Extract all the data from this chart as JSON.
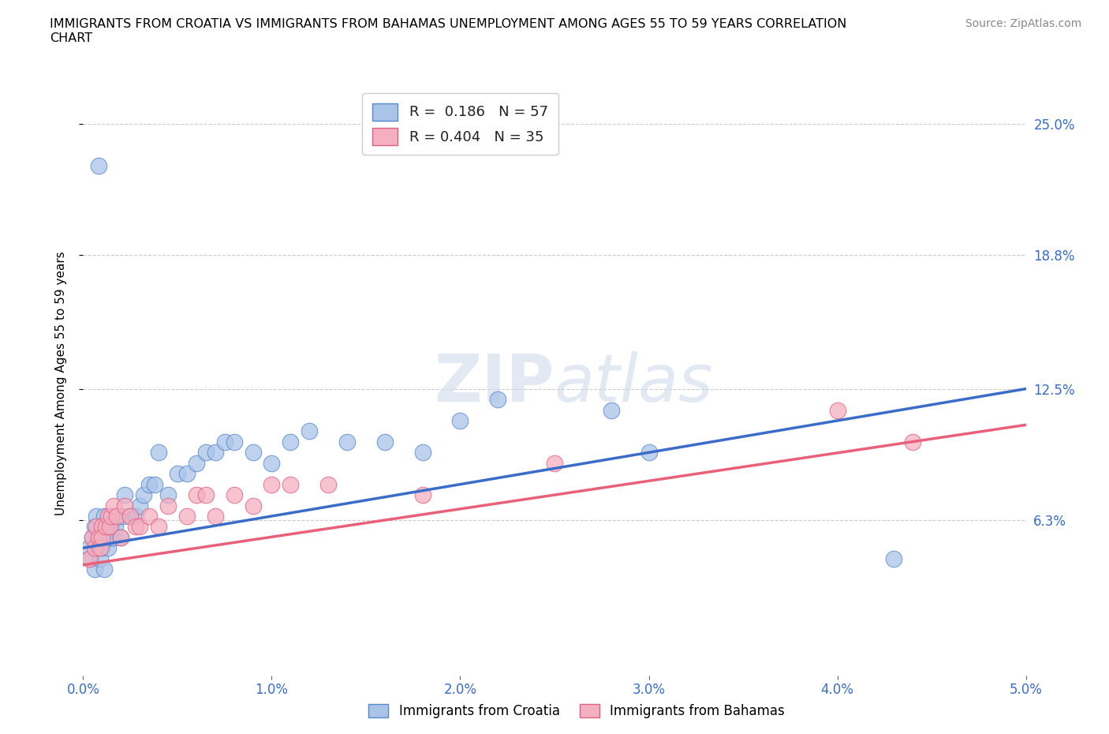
{
  "title": "IMMIGRANTS FROM CROATIA VS IMMIGRANTS FROM BAHAMAS UNEMPLOYMENT AMONG AGES 55 TO 59 YEARS CORRELATION\nCHART",
  "source": "Source: ZipAtlas.com",
  "ylabel": "Unemployment Among Ages 55 to 59 years",
  "xlim": [
    0.0,
    0.05
  ],
  "ylim": [
    -0.01,
    0.265
  ],
  "xticks": [
    0.0,
    0.01,
    0.02,
    0.03,
    0.04,
    0.05
  ],
  "xticklabels": [
    "0.0%",
    "1.0%",
    "2.0%",
    "3.0%",
    "4.0%",
    "5.0%"
  ],
  "yticks": [
    0.063,
    0.125,
    0.188,
    0.25
  ],
  "yticklabels": [
    "6.3%",
    "12.5%",
    "18.8%",
    "25.0%"
  ],
  "croatia_color": "#aac4e8",
  "bahamas_color": "#f4afc0",
  "croatia_edge_color": "#5588cc",
  "bahamas_edge_color": "#e06080",
  "croatia_line_color": "#3a6cc8",
  "bahamas_line_color": "#e8607a",
  "watermark_color": "#ccd8ea",
  "legend1_label": "R =  0.186   N = 57",
  "legend2_label": "R = 0.404   N = 35",
  "croatia_label": "Immigrants from Croatia",
  "bahamas_label": "Immigrants from Bahamas",
  "croatia_x": [
    0.0003,
    0.0004,
    0.0005,
    0.0006,
    0.0006,
    0.0007,
    0.0008,
    0.0008,
    0.0009,
    0.001,
    0.001,
    0.001,
    0.0011,
    0.0011,
    0.0012,
    0.0012,
    0.0013,
    0.0013,
    0.0014,
    0.0014,
    0.0015,
    0.0015,
    0.0016,
    0.0017,
    0.0018,
    0.0019,
    0.002,
    0.0021,
    0.0022,
    0.0025,
    0.0028,
    0.003,
    0.0032,
    0.0035,
    0.0038,
    0.004,
    0.0045,
    0.005,
    0.0055,
    0.006,
    0.0065,
    0.007,
    0.0075,
    0.008,
    0.009,
    0.01,
    0.011,
    0.012,
    0.014,
    0.016,
    0.018,
    0.02,
    0.022,
    0.028,
    0.03,
    0.043,
    0.0008
  ],
  "croatia_y": [
    0.05,
    0.045,
    0.055,
    0.06,
    0.04,
    0.065,
    0.05,
    0.055,
    0.045,
    0.06,
    0.05,
    0.055,
    0.065,
    0.04,
    0.055,
    0.06,
    0.06,
    0.05,
    0.06,
    0.055,
    0.06,
    0.055,
    0.055,
    0.06,
    0.065,
    0.065,
    0.055,
    0.065,
    0.075,
    0.065,
    0.065,
    0.07,
    0.075,
    0.08,
    0.08,
    0.095,
    0.075,
    0.085,
    0.085,
    0.09,
    0.095,
    0.095,
    0.1,
    0.1,
    0.095,
    0.09,
    0.1,
    0.105,
    0.1,
    0.1,
    0.095,
    0.11,
    0.12,
    0.115,
    0.095,
    0.045,
    0.23
  ],
  "bahamas_x": [
    0.0003,
    0.0005,
    0.0006,
    0.0007,
    0.0008,
    0.0009,
    0.001,
    0.001,
    0.0012,
    0.0013,
    0.0014,
    0.0015,
    0.0016,
    0.0018,
    0.002,
    0.0022,
    0.0025,
    0.0028,
    0.003,
    0.0035,
    0.004,
    0.0045,
    0.0055,
    0.006,
    0.0065,
    0.007,
    0.008,
    0.009,
    0.01,
    0.011,
    0.013,
    0.018,
    0.025,
    0.04,
    0.044
  ],
  "bahamas_y": [
    0.045,
    0.055,
    0.05,
    0.06,
    0.055,
    0.05,
    0.06,
    0.055,
    0.06,
    0.065,
    0.06,
    0.065,
    0.07,
    0.065,
    0.055,
    0.07,
    0.065,
    0.06,
    0.06,
    0.065,
    0.06,
    0.07,
    0.065,
    0.075,
    0.075,
    0.065,
    0.075,
    0.07,
    0.08,
    0.08,
    0.08,
    0.075,
    0.09,
    0.115,
    0.1
  ],
  "croatia_line_x": [
    0.0,
    0.05
  ],
  "croatia_line_y": [
    0.05,
    0.125
  ],
  "bahamas_line_x": [
    0.0,
    0.05
  ],
  "bahamas_line_y": [
    0.042,
    0.108
  ]
}
